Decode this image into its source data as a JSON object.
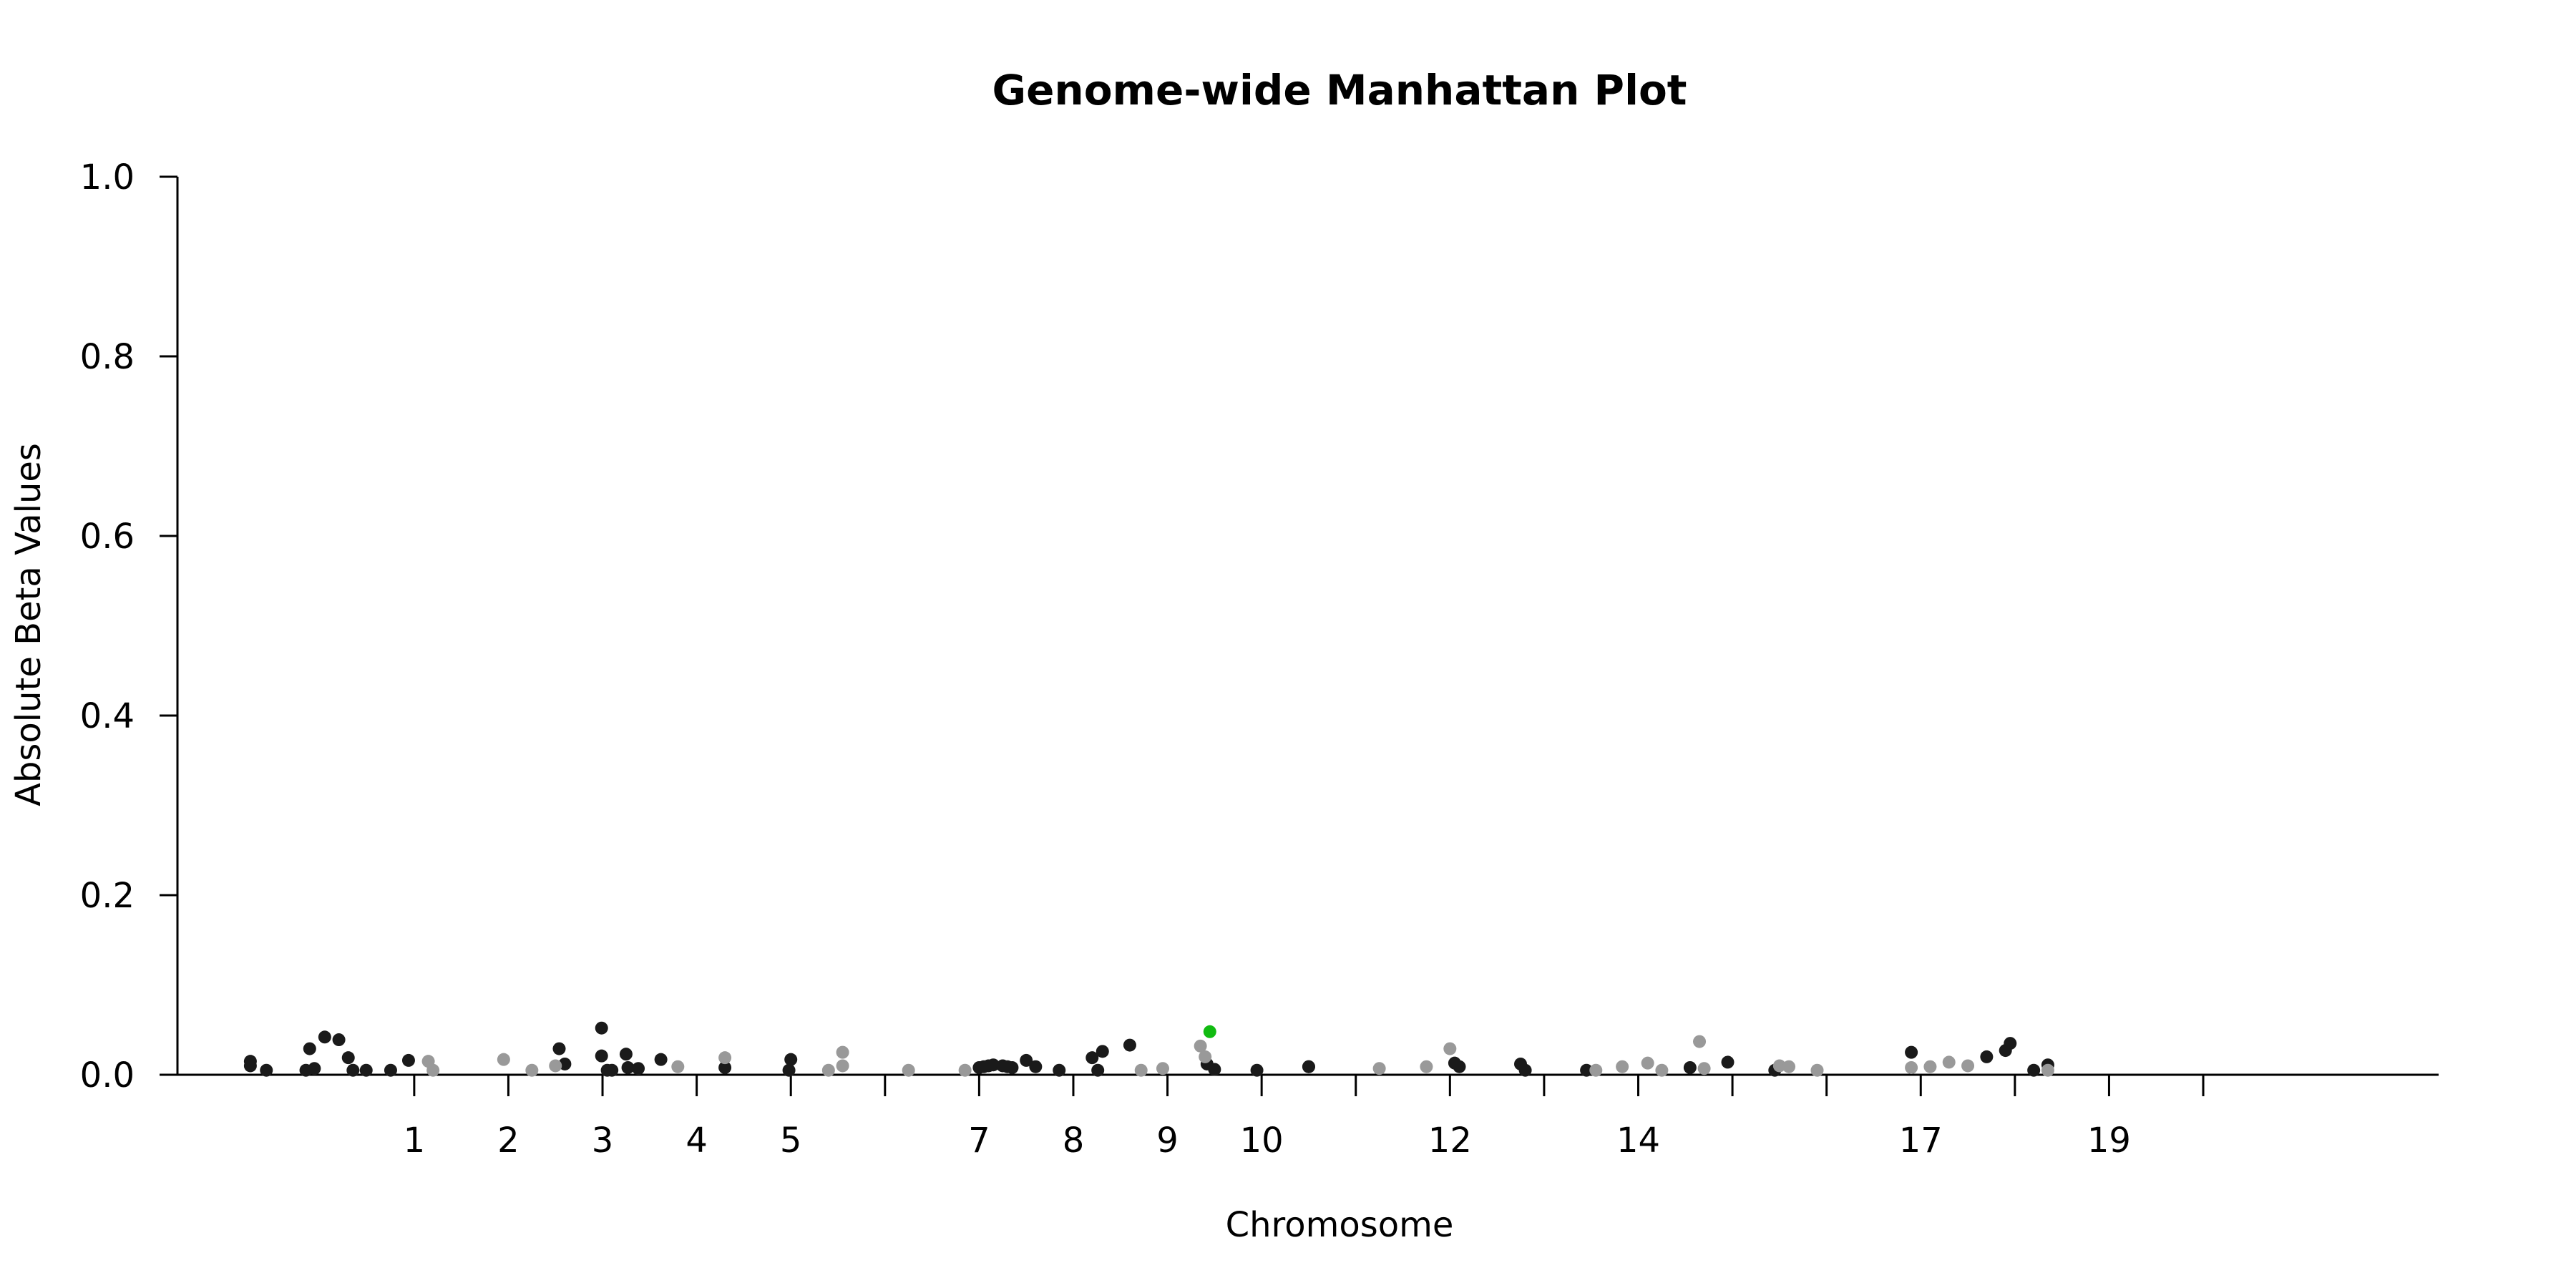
{
  "chart_data": {
    "type": "scatter",
    "title": "Genome-wide Manhattan Plot",
    "xlabel": "Chromosome",
    "ylabel": "Absolute Beta Values",
    "ylim": [
      0,
      1
    ],
    "yticks": [
      "0.0",
      "0.2",
      "0.4",
      "0.6",
      "0.8",
      "1.0"
    ],
    "xlim": [
      -0.8,
      22.5
    ],
    "chromosome_ticks": [
      {
        "chr": 1,
        "label": "1"
      },
      {
        "chr": 2,
        "label": "2"
      },
      {
        "chr": 3,
        "label": "3"
      },
      {
        "chr": 4,
        "label": "4"
      },
      {
        "chr": 5,
        "label": "5"
      },
      {
        "chr": 6,
        "label": ""
      },
      {
        "chr": 7,
        "label": "7"
      },
      {
        "chr": 8,
        "label": "8"
      },
      {
        "chr": 9,
        "label": "9"
      },
      {
        "chr": 10,
        "label": "10"
      },
      {
        "chr": 11,
        "label": ""
      },
      {
        "chr": 12,
        "label": "12"
      },
      {
        "chr": 13,
        "label": ""
      },
      {
        "chr": 14,
        "label": "14"
      },
      {
        "chr": 15,
        "label": ""
      },
      {
        "chr": 16,
        "label": ""
      },
      {
        "chr": 17,
        "label": "17"
      },
      {
        "chr": 18,
        "label": ""
      },
      {
        "chr": 19,
        "label": "19"
      },
      {
        "chr": 20,
        "label": ""
      }
    ],
    "colors": {
      "dark": "#1a1a1a",
      "light": "#999999",
      "highlight": "#11bb11"
    },
    "series": [
      {
        "color": "dark",
        "points": [
          [
            -0.74,
            0.015
          ],
          [
            -0.74,
            0.01
          ],
          [
            -0.57,
            0.005
          ],
          [
            -0.15,
            0.005
          ],
          [
            -0.11,
            0.029
          ],
          [
            -0.06,
            0.007
          ],
          [
            0.05,
            0.042
          ],
          [
            0.2,
            0.039
          ],
          [
            0.3,
            0.019
          ],
          [
            0.35,
            0.005
          ],
          [
            0.49,
            0.005
          ],
          [
            0.75,
            0.005
          ],
          [
            0.94,
            0.016
          ],
          [
            2.54,
            0.029
          ],
          [
            2.6,
            0.012
          ],
          [
            2.99,
            0.052
          ],
          [
            2.99,
            0.021
          ],
          [
            3.05,
            0.005
          ],
          [
            3.1,
            0.005
          ],
          [
            3.25,
            0.023
          ],
          [
            3.27,
            0.008
          ],
          [
            3.38,
            0.007
          ],
          [
            3.62,
            0.017
          ],
          [
            4.3,
            0.008
          ],
          [
            4.98,
            0.005
          ],
          [
            5.0,
            0.017
          ],
          [
            7.0,
            0.008
          ],
          [
            7.05,
            0.009
          ],
          [
            7.1,
            0.01
          ],
          [
            7.15,
            0.011
          ],
          [
            7.25,
            0.01
          ],
          [
            7.3,
            0.009
          ],
          [
            7.35,
            0.008
          ],
          [
            7.5,
            0.016
          ],
          [
            7.6,
            0.009
          ],
          [
            7.85,
            0.005
          ],
          [
            8.2,
            0.019
          ],
          [
            8.26,
            0.005
          ],
          [
            8.31,
            0.026
          ],
          [
            8.6,
            0.033
          ],
          [
            9.42,
            0.012
          ],
          [
            9.5,
            0.006
          ],
          [
            9.95,
            0.005
          ],
          [
            10.5,
            0.009
          ],
          [
            10.5,
            0.009
          ],
          [
            12.05,
            0.013
          ],
          [
            12.1,
            0.009
          ],
          [
            12.75,
            0.012
          ],
          [
            12.8,
            0.005
          ],
          [
            13.45,
            0.005
          ],
          [
            14.55,
            0.008
          ],
          [
            14.95,
            0.014
          ],
          [
            15.45,
            0.005
          ],
          [
            16.9,
            0.025
          ],
          [
            17.7,
            0.02
          ],
          [
            17.9,
            0.027
          ],
          [
            17.95,
            0.035
          ],
          [
            18.2,
            0.005
          ],
          [
            18.35,
            0.011
          ]
        ]
      },
      {
        "color": "light",
        "points": [
          [
            1.15,
            0.015
          ],
          [
            1.2,
            0.005
          ],
          [
            1.95,
            0.017
          ],
          [
            2.25,
            0.005
          ],
          [
            2.5,
            0.01
          ],
          [
            3.8,
            0.009
          ],
          [
            4.3,
            0.019
          ],
          [
            5.4,
            0.005
          ],
          [
            5.55,
            0.025
          ],
          [
            5.55,
            0.01
          ],
          [
            6.25,
            0.005
          ],
          [
            6.85,
            0.005
          ],
          [
            8.72,
            0.005
          ],
          [
            8.95,
            0.007
          ],
          [
            9.35,
            0.032
          ],
          [
            9.4,
            0.02
          ],
          [
            11.25,
            0.007
          ],
          [
            11.75,
            0.009
          ],
          [
            12.0,
            0.029
          ],
          [
            13.55,
            0.005
          ],
          [
            13.83,
            0.009
          ],
          [
            14.1,
            0.013
          ],
          [
            14.25,
            0.005
          ],
          [
            14.65,
            0.037
          ],
          [
            14.7,
            0.007
          ],
          [
            15.5,
            0.01
          ],
          [
            15.6,
            0.009
          ],
          [
            15.9,
            0.005
          ],
          [
            16.9,
            0.008
          ],
          [
            17.1,
            0.009
          ],
          [
            17.3,
            0.014
          ],
          [
            17.5,
            0.01
          ],
          [
            18.35,
            0.005
          ]
        ]
      },
      {
        "color": "highlight",
        "points": [
          [
            9.45,
            0.048
          ]
        ]
      }
    ]
  }
}
